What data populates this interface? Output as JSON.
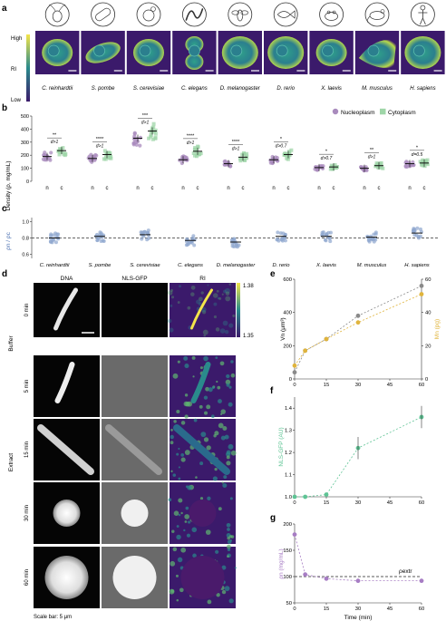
{
  "panel_letters": {
    "a": "a",
    "b": "b",
    "c": "c",
    "d": "d",
    "e": "e",
    "f": "f",
    "g": "g"
  },
  "panel_a": {
    "ri_label": "RI",
    "high_label": "High",
    "low_label": "Low",
    "organisms": [
      "C. reinhardtii",
      "S. pombe",
      "S. cerevisiae",
      "C. elegans",
      "D. melanogaster",
      "D. rerio",
      "X. laevis",
      "M. musculus",
      "H. sapiens"
    ],
    "icon_names": [
      "chlamydomonas-icon",
      "fission-yeast-icon",
      "budding-yeast-icon",
      "worm-icon",
      "fly-icon",
      "fish-icon",
      "frog-icon",
      "mouse-icon",
      "human-icon"
    ],
    "colors": {
      "low": "#3b1a6b",
      "mid": "#2a8a8c",
      "high": "#f4e44a"
    }
  },
  "panel_b": {
    "ylabel": "Density (ρ, mg/mL)",
    "legend": {
      "nucleoplasm": "Nucleoplasm",
      "cytoplasm": "Cytoplasm"
    },
    "colors": {
      "nucleoplasm": "#a98bbd",
      "cytoplasm": "#9fd6a8"
    },
    "n_label": "n",
    "c_label": "c",
    "yticks": [
      "500",
      "400",
      "300",
      "200",
      "100",
      "0"
    ],
    "stars": [
      "**",
      "****",
      "***",
      "****",
      "****",
      "*",
      "*",
      "**",
      "*"
    ],
    "ratios": [
      "d>1",
      "d>1",
      "d>1",
      "d>1",
      "d>1",
      "d>0.7",
      "d>0.7",
      "d>1",
      "d=0.5"
    ],
    "chart_data": {
      "type": "scatter",
      "categories": [
        "C. reinhardtii",
        "S. pombe",
        "S. cerevisiae",
        "C. elegans",
        "D. melanogaster",
        "D. rerio",
        "X. laevis",
        "M. musculus",
        "H. sapiens"
      ],
      "series": [
        {
          "name": "Nucleoplasm",
          "values": [
            190,
            175,
            330,
            165,
            135,
            165,
            105,
            100,
            135
          ]
        },
        {
          "name": "Cytoplasm",
          "values": [
            235,
            205,
            385,
            230,
            185,
            205,
            110,
            120,
            140
          ]
        }
      ],
      "ylim": [
        0,
        500
      ]
    }
  },
  "panel_c": {
    "ylabel": "ρn / ρc",
    "yticks": [
      "1.0",
      "0.8",
      "0.6"
    ],
    "chart_data": {
      "type": "scatter",
      "categories": [
        "C. reinhardtii",
        "S. pombe",
        "S. cerevisiae",
        "C. elegans",
        "D. melanogaster",
        "D. rerio",
        "X. laevis",
        "M. musculus",
        "H. sapiens"
      ],
      "series": [
        {
          "name": "ρn / ρc",
          "values": [
            0.8,
            0.82,
            0.84,
            0.77,
            0.75,
            0.82,
            0.82,
            0.81,
            0.86
          ]
        }
      ],
      "reference_line": 0.8,
      "ylim": [
        0.55,
        1.05
      ]
    }
  },
  "panel_d": {
    "columns": [
      "DNA",
      "NLS-GFP",
      "RI"
    ],
    "rows": [
      "0 min",
      "5 min",
      "15 min",
      "30 min",
      "60 min"
    ],
    "group_buffer": "Buffer",
    "group_extract": "Extract",
    "cbar_max": "1.38",
    "cbar_min": "1.35",
    "scalebar_note": "Scale bar: 5 μm"
  },
  "panel_e": {
    "ylabel_left": "Vn (μm³)",
    "ylabel_right": "Mn (pg)",
    "yticks_left": [
      "600",
      "400",
      "200",
      "0"
    ],
    "yticks_right": [
      "60",
      "40",
      "20",
      "0"
    ],
    "xticks": [
      "0",
      "15",
      "30",
      "45",
      "60"
    ],
    "colors": {
      "volume": "#8a8a8a",
      "mass": "#e0b43c"
    },
    "chart_data": {
      "type": "line",
      "x": [
        0,
        5,
        15,
        30,
        60
      ],
      "series": [
        {
          "name": "Vn",
          "values": [
            40,
            170,
            240,
            380,
            560
          ]
        },
        {
          "name": "Mn",
          "values": [
            8,
            17,
            24,
            34,
            51
          ]
        }
      ]
    }
  },
  "panel_f": {
    "ylabel": "NLS-GFP (AU)",
    "yticks": [
      "1.4",
      "1.3",
      "1.2",
      "1.1",
      "1.0"
    ],
    "xticks": [
      "0",
      "15",
      "30",
      "45",
      "60"
    ],
    "color": "#5fc495",
    "chart_data": {
      "type": "line",
      "x": [
        0,
        5,
        15,
        30,
        60
      ],
      "values": [
        1.0,
        1.0,
        1.01,
        1.22,
        1.36
      ],
      "ylim": [
        1.0,
        1.45
      ]
    }
  },
  "panel_g": {
    "ylabel": "ρn (mg/mL)",
    "yticks": [
      "200",
      "150",
      "100",
      "50"
    ],
    "xticks": [
      "0",
      "15",
      "30",
      "45",
      "60"
    ],
    "xlabel": "Time (min)",
    "rho_extract": "ρextr",
    "color": "#a77dc4",
    "chart_data": {
      "type": "line",
      "x": [
        0,
        5,
        15,
        30,
        60
      ],
      "values": [
        180,
        104,
        96,
        92,
        92
      ],
      "reference_line": 100,
      "ylim": [
        50,
        200
      ]
    }
  }
}
